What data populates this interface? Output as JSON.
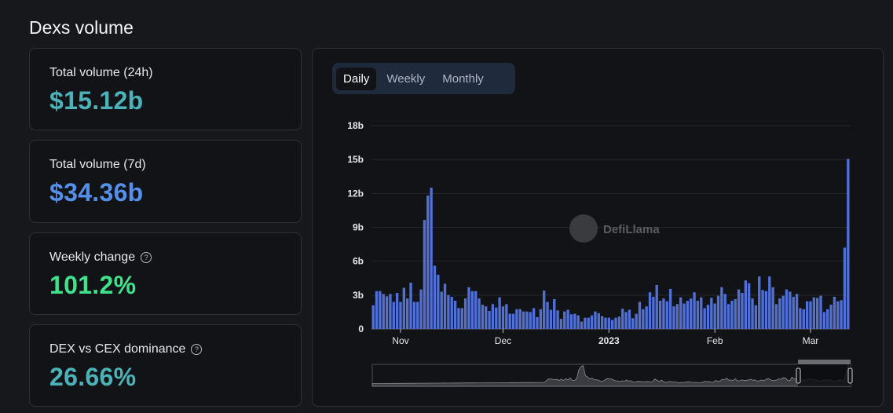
{
  "page": {
    "title": "Dexs volume"
  },
  "cards": [
    {
      "label": "Total volume (24h)",
      "value": "$15.12b",
      "color": "#4bb3b8",
      "help": false
    },
    {
      "label": "Total volume (7d)",
      "value": "$34.36b",
      "color": "#5490ea",
      "help": false
    },
    {
      "label": "Weekly change",
      "value": "101.2%",
      "color": "#3ee38c",
      "help": true
    },
    {
      "label": "DEX vs CEX dominance",
      "value": "26.66%",
      "color": "#4bb3b8",
      "help": true
    }
  ],
  "help_icon": "question-circle-icon",
  "tabs": [
    {
      "label": "Daily",
      "active": true
    },
    {
      "label": "Weekly",
      "active": false
    },
    {
      "label": "Monthly",
      "active": false
    }
  ],
  "watermark": "DefiLlama",
  "chart_data": {
    "type": "bar",
    "bar_color": "#5070d6",
    "ylim": [
      0,
      18
    ],
    "y_ticks": [
      {
        "value": 0,
        "label": "0"
      },
      {
        "value": 3,
        "label": "3b"
      },
      {
        "value": 6,
        "label": "6b"
      },
      {
        "value": 9,
        "label": "9b"
      },
      {
        "value": 12,
        "label": "12b"
      },
      {
        "value": 15,
        "label": "15b"
      },
      {
        "value": 18,
        "label": "18b"
      }
    ],
    "x_ticks": [
      {
        "date": "2022-11-01",
        "label": "Nov",
        "bold": false
      },
      {
        "date": "2022-12-01",
        "label": "Dec",
        "bold": false
      },
      {
        "date": "2023-01-01",
        "label": "2023",
        "bold": true
      },
      {
        "date": "2023-02-01",
        "label": "Feb",
        "bold": false
      },
      {
        "date": "2023-03-01",
        "label": "Mar",
        "bold": false
      }
    ],
    "grid": true,
    "unit": "b (USD billions)",
    "x": [
      "2022-10-24",
      "2022-10-25",
      "2022-10-26",
      "2022-10-27",
      "2022-10-28",
      "2022-10-29",
      "2022-10-30",
      "2022-10-31",
      "2022-11-01",
      "2022-11-02",
      "2022-11-03",
      "2022-11-04",
      "2022-11-05",
      "2022-11-06",
      "2022-11-07",
      "2022-11-08",
      "2022-11-09",
      "2022-11-10",
      "2022-11-11",
      "2022-11-12",
      "2022-11-13",
      "2022-11-14",
      "2022-11-15",
      "2022-11-16",
      "2022-11-17",
      "2022-11-18",
      "2022-11-19",
      "2022-11-20",
      "2022-11-21",
      "2022-11-22",
      "2022-11-23",
      "2022-11-24",
      "2022-11-25",
      "2022-11-26",
      "2022-11-27",
      "2022-11-28",
      "2022-11-29",
      "2022-11-30",
      "2022-12-01",
      "2022-12-02",
      "2022-12-03",
      "2022-12-04",
      "2022-12-05",
      "2022-12-06",
      "2022-12-07",
      "2022-12-08",
      "2022-12-09",
      "2022-12-10",
      "2022-12-11",
      "2022-12-12",
      "2022-12-13",
      "2022-12-14",
      "2022-12-15",
      "2022-12-16",
      "2022-12-17",
      "2022-12-18",
      "2022-12-19",
      "2022-12-20",
      "2022-12-21",
      "2022-12-22",
      "2022-12-23",
      "2022-12-24",
      "2022-12-25",
      "2022-12-26",
      "2022-12-27",
      "2022-12-28",
      "2022-12-29",
      "2022-12-30",
      "2022-12-31",
      "2023-01-01",
      "2023-01-02",
      "2023-01-03",
      "2023-01-04",
      "2023-01-05",
      "2023-01-06",
      "2023-01-07",
      "2023-01-08",
      "2023-01-09",
      "2023-01-10",
      "2023-01-11",
      "2023-01-12",
      "2023-01-13",
      "2023-01-14",
      "2023-01-15",
      "2023-01-16",
      "2023-01-17",
      "2023-01-18",
      "2023-01-19",
      "2023-01-20",
      "2023-01-21",
      "2023-01-22",
      "2023-01-23",
      "2023-01-24",
      "2023-01-25",
      "2023-01-26",
      "2023-01-27",
      "2023-01-28",
      "2023-01-29",
      "2023-01-30",
      "2023-01-31",
      "2023-02-01",
      "2023-02-02",
      "2023-02-03",
      "2023-02-04",
      "2023-02-05",
      "2023-02-06",
      "2023-02-07",
      "2023-02-08",
      "2023-02-09",
      "2023-02-10",
      "2023-02-11",
      "2023-02-12",
      "2023-02-13",
      "2023-02-14",
      "2023-02-15",
      "2023-02-16",
      "2023-02-17",
      "2023-02-18",
      "2023-02-19",
      "2023-02-20",
      "2023-02-21",
      "2023-02-22",
      "2023-02-23",
      "2023-02-24",
      "2023-02-25",
      "2023-02-26",
      "2023-02-27",
      "2023-02-28",
      "2023-03-01",
      "2023-03-02",
      "2023-03-03",
      "2023-03-04",
      "2023-03-05",
      "2023-03-06",
      "2023-03-07",
      "2023-03-08",
      "2023-03-09",
      "2023-03-10",
      "2023-03-11",
      "2023-03-12"
    ],
    "values": [
      2.1,
      3.35,
      3.35,
      3.1,
      2.9,
      3.1,
      2.4,
      3.2,
      2.4,
      3.65,
      2.7,
      4.1,
      2.4,
      2.4,
      3.5,
      9.65,
      11.8,
      12.5,
      5.6,
      4.8,
      3.3,
      4.0,
      3.0,
      2.85,
      2.5,
      1.85,
      1.85,
      2.7,
      3.7,
      3.35,
      3.35,
      2.7,
      2.15,
      2.0,
      1.6,
      2.2,
      1.9,
      2.8,
      2.0,
      2.2,
      1.35,
      1.35,
      1.75,
      1.75,
      1.55,
      1.55,
      1.5,
      1.85,
      1.05,
      1.75,
      3.4,
      2.4,
      1.7,
      2.65,
      1.65,
      0.9,
      1.55,
      1.7,
      1.3,
      1.35,
      1.2,
      0.65,
      1.0,
      1.0,
      1.2,
      1.55,
      1.4,
      1.15,
      1.0,
      1.0,
      0.8,
      1.0,
      1.1,
      1.8,
      1.5,
      1.7,
      0.95,
      1.35,
      2.4,
      1.75,
      2.0,
      3.25,
      2.85,
      3.9,
      2.5,
      2.7,
      2.45,
      3.55,
      2.0,
      2.2,
      2.8,
      2.25,
      2.5,
      2.7,
      3.25,
      2.5,
      2.8,
      1.85,
      2.15,
      2.75,
      2.25,
      2.95,
      3.7,
      3.1,
      2.2,
      2.5,
      2.65,
      3.5,
      3.2,
      4.3,
      4.05,
      2.7,
      2.1,
      4.65,
      3.45,
      3.35,
      4.65,
      3.7,
      2.2,
      2.7,
      2.95,
      3.5,
      3.3,
      2.85,
      3.1,
      1.85,
      1.75,
      2.45,
      2.45,
      2.8,
      2.75,
      2.95,
      1.5,
      1.75,
      2.15,
      2.85,
      2.45,
      2.55,
      7.2,
      15.05
    ]
  }
}
